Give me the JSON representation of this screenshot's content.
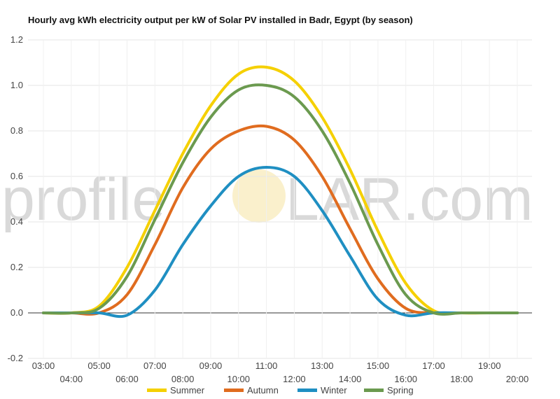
{
  "chart_data": {
    "type": "line",
    "title": "Hourly avg kWh electricity output per kW of Solar PV installed in Badr, Egypt (by season)",
    "xlabel": "",
    "ylabel": "",
    "x": [
      "03:00",
      "04:00",
      "05:00",
      "06:00",
      "07:00",
      "08:00",
      "09:00",
      "10:00",
      "11:00",
      "12:00",
      "13:00",
      "14:00",
      "15:00",
      "16:00",
      "17:00",
      "18:00",
      "19:00",
      "20:00"
    ],
    "yticks": [
      "-0.2",
      "0.0",
      "0.2",
      "0.4",
      "0.6",
      "0.8",
      "1.0",
      "1.2"
    ],
    "ylim": [
      -0.2,
      1.2
    ],
    "grid": true,
    "legend": "bottom",
    "series": [
      {
        "name": "Summer",
        "color": "#f5d000",
        "values": [
          0,
          0,
          0.03,
          0.2,
          0.45,
          0.7,
          0.91,
          1.05,
          1.08,
          1.02,
          0.86,
          0.63,
          0.36,
          0.13,
          0.01,
          0,
          0,
          0
        ]
      },
      {
        "name": "Autumn",
        "color": "#e06c1f",
        "values": [
          0,
          0,
          0,
          0.08,
          0.3,
          0.55,
          0.72,
          0.8,
          0.82,
          0.76,
          0.6,
          0.37,
          0.15,
          0.02,
          0,
          0,
          0,
          0
        ]
      },
      {
        "name": "Winter",
        "color": "#1f8fc2",
        "values": [
          0,
          0,
          0,
          -0.01,
          0.1,
          0.3,
          0.47,
          0.6,
          0.64,
          0.6,
          0.45,
          0.25,
          0.06,
          -0.01,
          0,
          0,
          0,
          0
        ]
      },
      {
        "name": "Spring",
        "color": "#6b9a4f",
        "values": [
          0,
          0,
          0.02,
          0.16,
          0.41,
          0.66,
          0.86,
          0.98,
          1.0,
          0.95,
          0.8,
          0.57,
          0.3,
          0.08,
          0,
          0,
          0,
          0
        ]
      }
    ]
  },
  "watermark": {
    "left": "profile",
    "right": "LAR.com",
    "sun_color": "#f8e8b0"
  }
}
